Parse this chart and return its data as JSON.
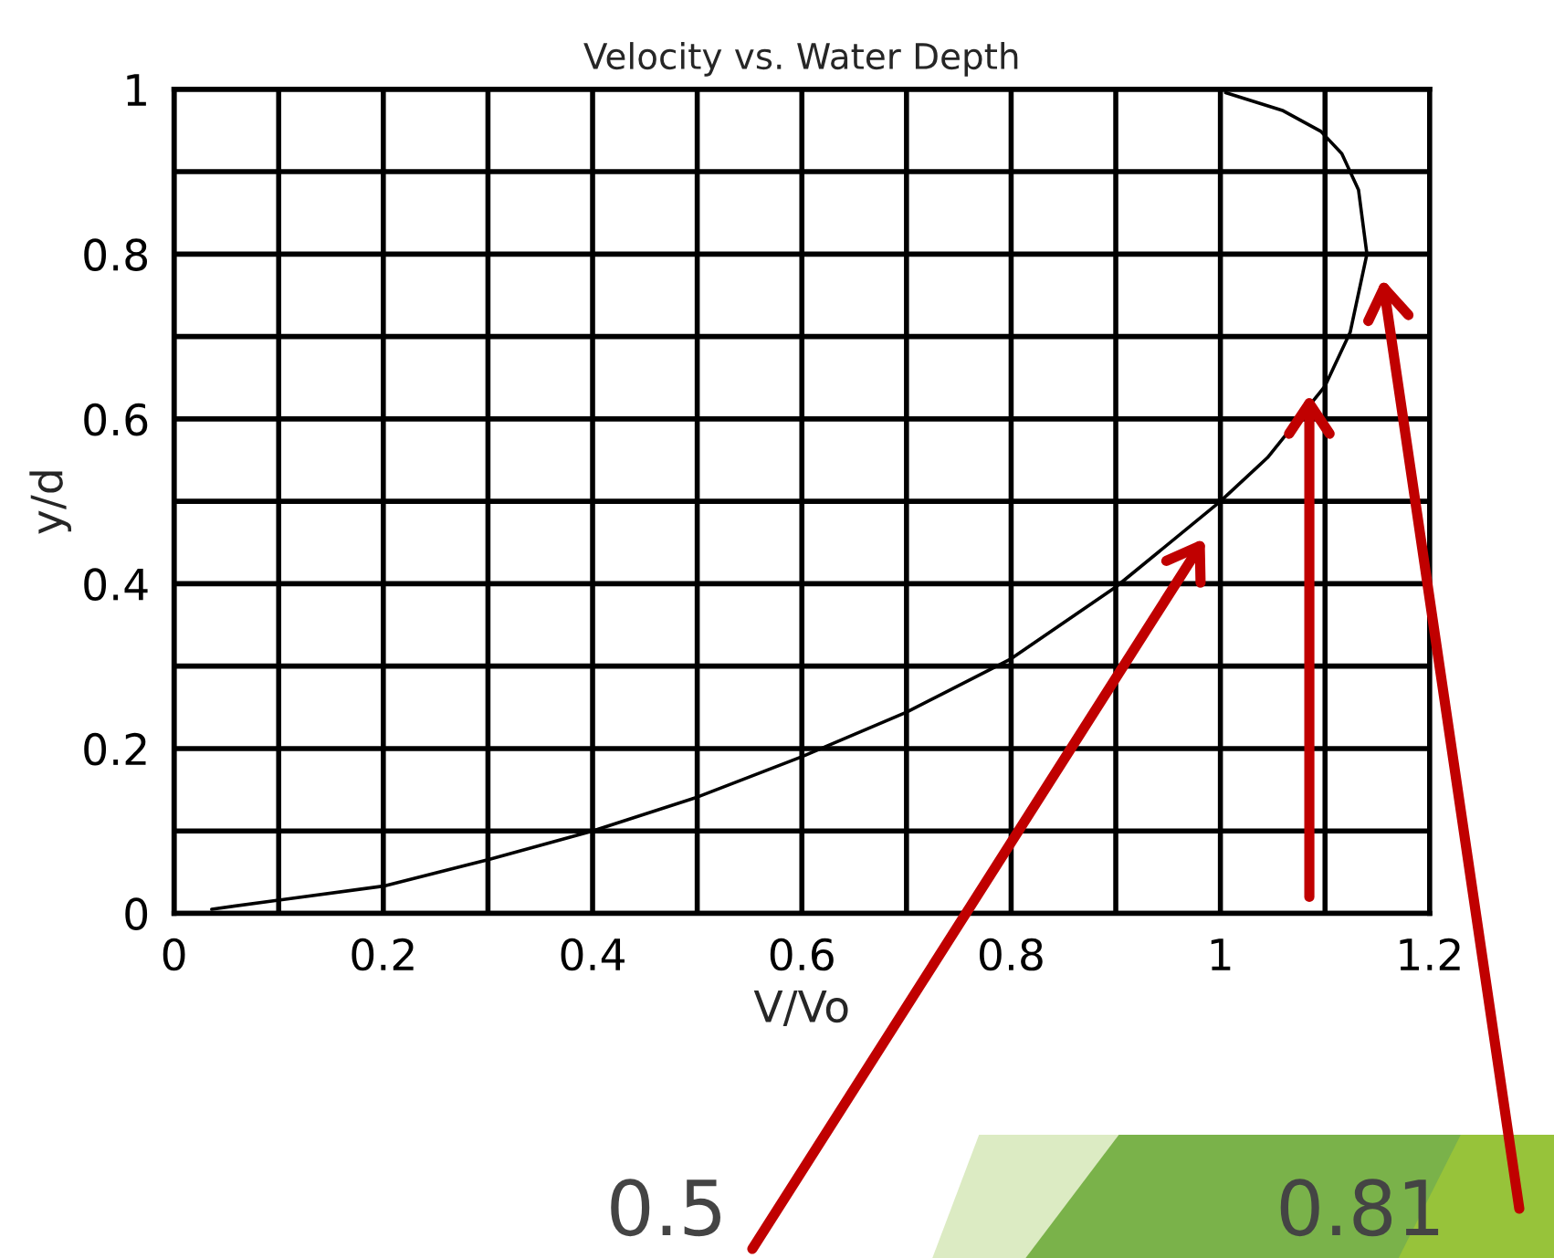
{
  "chart_data": {
    "type": "line",
    "title": "Velocity vs. Water Depth",
    "xlabel": "V/Vo",
    "ylabel": "y/d",
    "x": [
      0.036,
      0.1,
      0.2,
      0.3,
      0.4,
      0.5,
      0.6,
      0.7,
      0.8,
      0.9,
      1.0,
      1.045,
      1.1,
      1.124,
      1.14,
      1.132,
      1.116,
      1.096,
      1.06,
      1.005
    ],
    "series": [
      {
        "color": "#000000",
        "values": [
          0.005,
          0.016,
          0.033,
          0.065,
          0.1,
          0.141,
          0.19,
          0.244,
          0.309,
          0.396,
          0.5,
          0.553,
          0.64,
          0.705,
          0.8,
          0.878,
          0.922,
          0.949,
          0.974,
          0.996
        ]
      }
    ],
    "xlim": [
      0,
      1.2
    ],
    "ylim": [
      0,
      1
    ],
    "xticks": [
      0,
      {
        "value": 0.1,
        "label": null
      },
      0.2,
      {
        "value": 0.3,
        "label": null
      },
      0.4,
      {
        "value": 0.5,
        "label": null
      },
      0.6,
      {
        "value": 0.7,
        "label": null
      },
      0.8,
      {
        "value": 0.9,
        "label": null
      },
      1,
      {
        "value": 1.1,
        "label": null
      },
      1.2
    ],
    "yticks": [
      0,
      {
        "value": 0.1,
        "label": null
      },
      0.2,
      {
        "value": 0.3,
        "label": null
      },
      0.4,
      {
        "value": 0.5,
        "label": null
      },
      0.6,
      {
        "value": 0.7,
        "label": null
      },
      0.8,
      {
        "value": 0.9,
        "label": null
      },
      1
    ],
    "grid": true,
    "marker": "none",
    "line_style": "solid",
    "legend": false,
    "annotations": [
      "0.5",
      "0.81"
    ]
  }
}
